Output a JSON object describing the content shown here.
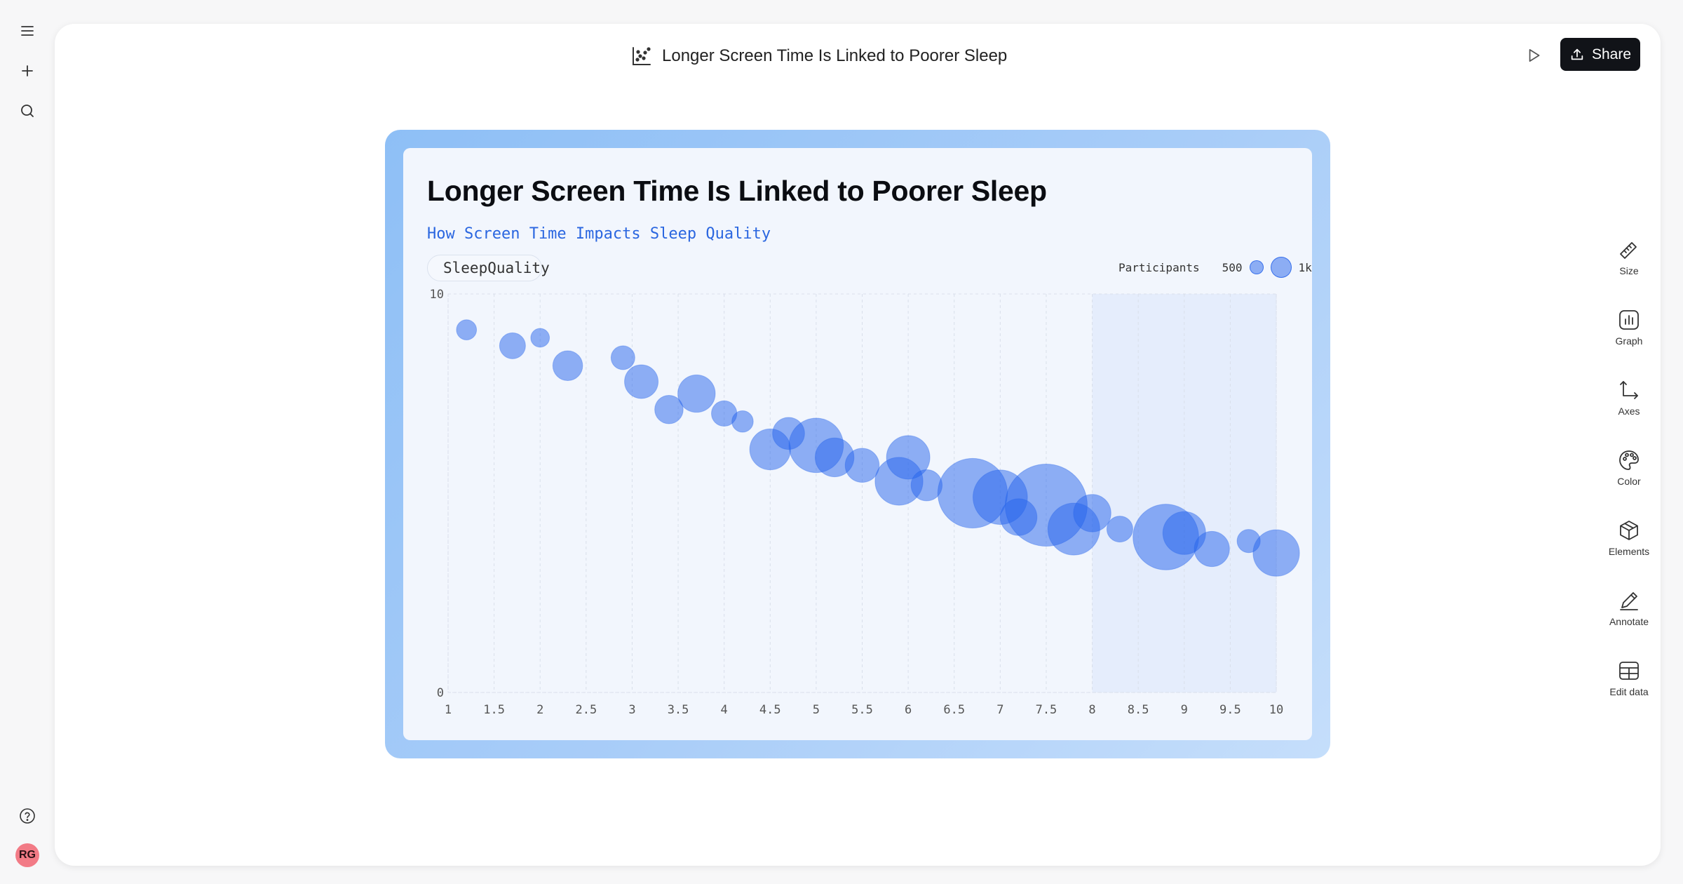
{
  "document": {
    "title": "Longer Screen Time Is Linked to Poorer Sleep"
  },
  "header": {
    "share_label": "Share"
  },
  "left_rail": {
    "avatar_initials": "RG"
  },
  "toolbar": {
    "items": [
      {
        "label": "Size",
        "icon": "ruler-icon"
      },
      {
        "label": "Graph",
        "icon": "graph-icon"
      },
      {
        "label": "Axes",
        "icon": "axes-icon"
      },
      {
        "label": "Color",
        "icon": "palette-icon"
      },
      {
        "label": "Elements",
        "icon": "cube-icon"
      },
      {
        "label": "Annotate",
        "icon": "pen-icon"
      },
      {
        "label": "Edit data",
        "icon": "table-icon"
      }
    ]
  },
  "chart": {
    "title": "Longer Screen Time Is Linked to Poorer Sleep",
    "subtitle": "How Screen Time Impacts Sleep Quality",
    "series_label": "SleepQuality",
    "size_legend_title": "Participants",
    "size_legend_small": "500",
    "size_legend_large": "1k",
    "colors": {
      "bubble_fill": "#2563eb",
      "highlight_band": "#e3ebfb",
      "frame_gradient_start": "#8ebff6",
      "frame_gradient_end": "#c5defb"
    }
  },
  "chart_data": {
    "type": "scatter",
    "title": "Longer Screen Time Is Linked to Poorer Sleep",
    "subtitle": "How Screen Time Impacts Sleep Quality",
    "xlabel": "",
    "ylabel": "",
    "xlim": [
      1,
      10
    ],
    "ylim": [
      0,
      10
    ],
    "x_ticks": [
      "1",
      "1.5",
      "2",
      "2.5",
      "3",
      "3.5",
      "4",
      "4.5",
      "5",
      "5.5",
      "6",
      "6.5",
      "7",
      "7.5",
      "8",
      "8.5",
      "9",
      "9.5",
      "10"
    ],
    "y_ticks": [
      "0",
      "10"
    ],
    "grid": true,
    "highlight_x_range": [
      8,
      10
    ],
    "size_legend": {
      "title": "Participants",
      "values": [
        500,
        1000
      ]
    },
    "series": [
      {
        "name": "SleepQuality",
        "points": [
          {
            "x": 1.2,
            "y": 9.1,
            "size": 150
          },
          {
            "x": 1.7,
            "y": 8.7,
            "size": 250
          },
          {
            "x": 2.0,
            "y": 8.9,
            "size": 130
          },
          {
            "x": 2.3,
            "y": 8.2,
            "size": 330
          },
          {
            "x": 2.9,
            "y": 8.4,
            "size": 210
          },
          {
            "x": 3.1,
            "y": 7.8,
            "size": 420
          },
          {
            "x": 3.4,
            "y": 7.1,
            "size": 300
          },
          {
            "x": 3.7,
            "y": 7.5,
            "size": 520
          },
          {
            "x": 4.0,
            "y": 7.0,
            "size": 240
          },
          {
            "x": 4.2,
            "y": 6.8,
            "size": 170
          },
          {
            "x": 4.5,
            "y": 6.1,
            "size": 620
          },
          {
            "x": 4.7,
            "y": 6.5,
            "size": 380
          },
          {
            "x": 5.0,
            "y": 6.2,
            "size": 1100
          },
          {
            "x": 5.2,
            "y": 5.9,
            "size": 560
          },
          {
            "x": 5.5,
            "y": 5.7,
            "size": 430
          },
          {
            "x": 5.9,
            "y": 5.3,
            "size": 850
          },
          {
            "x": 6.0,
            "y": 5.9,
            "size": 700
          },
          {
            "x": 6.2,
            "y": 5.2,
            "size": 360
          },
          {
            "x": 6.7,
            "y": 5.0,
            "size": 1800
          },
          {
            "x": 7.0,
            "y": 4.9,
            "size": 1100
          },
          {
            "x": 7.2,
            "y": 4.4,
            "size": 500
          },
          {
            "x": 7.5,
            "y": 4.7,
            "size": 2500
          },
          {
            "x": 7.8,
            "y": 4.1,
            "size": 1000
          },
          {
            "x": 8.0,
            "y": 4.5,
            "size": 520
          },
          {
            "x": 8.3,
            "y": 4.1,
            "size": 250
          },
          {
            "x": 8.8,
            "y": 3.9,
            "size": 1600
          },
          {
            "x": 9.0,
            "y": 4.0,
            "size": 680
          },
          {
            "x": 9.3,
            "y": 3.6,
            "size": 460
          },
          {
            "x": 9.7,
            "y": 3.8,
            "size": 200
          },
          {
            "x": 10.0,
            "y": 3.5,
            "size": 800
          }
        ]
      }
    ]
  }
}
